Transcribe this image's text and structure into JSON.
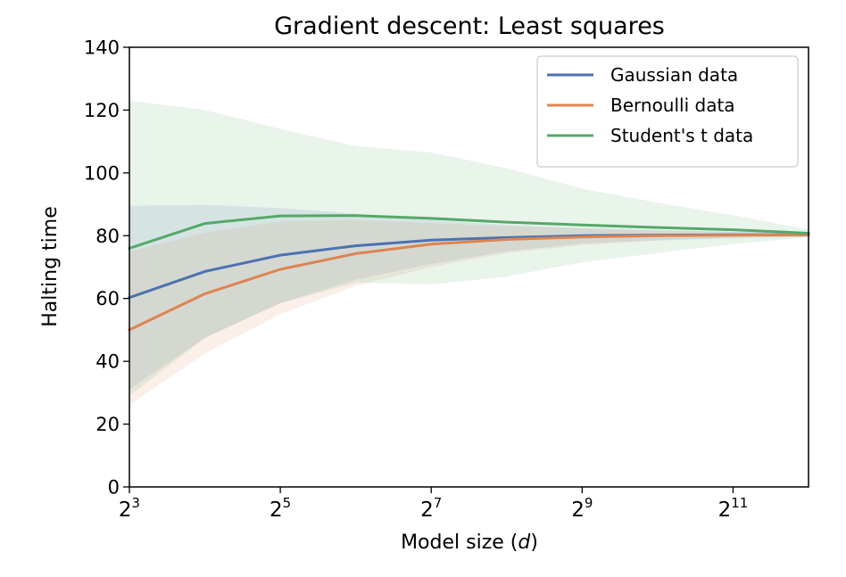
{
  "chart_data": {
    "type": "line",
    "title": "Gradient descent: Least squares",
    "xlabel_prefix": "Model size (",
    "xlabel_var": "d",
    "xlabel_suffix": ")",
    "ylabel": "Halting time",
    "x_scale": "log2",
    "x": [
      8,
      16,
      32,
      64,
      128,
      256,
      512,
      1024,
      2048,
      4096
    ],
    "xlim": [
      8,
      4096
    ],
    "ylim": [
      0,
      140
    ],
    "y_ticks": [
      0,
      20,
      40,
      60,
      80,
      100,
      120,
      140
    ],
    "x_ticks": [
      {
        "value": 8,
        "base": "2",
        "exp": "3"
      },
      {
        "value": 32,
        "base": "2",
        "exp": "5"
      },
      {
        "value": 128,
        "base": "2",
        "exp": "7"
      },
      {
        "value": 512,
        "base": "2",
        "exp": "9"
      },
      {
        "value": 2048,
        "base": "2",
        "exp": "11"
      }
    ],
    "legend_position": "top-right",
    "grid": false,
    "series": [
      {
        "name": "Gaussian data",
        "color": "#4c72b0",
        "values": [
          60.3,
          68.6,
          73.8,
          76.8,
          78.6,
          79.4,
          80.0,
          80.2,
          80.3,
          80.3
        ],
        "upper": [
          89.5,
          89.8,
          88.8,
          87.0,
          85.0,
          83.5,
          82.5,
          81.8,
          81.3,
          81.0
        ],
        "lower": [
          31.0,
          47.5,
          58.5,
          66.0,
          71.0,
          75.0,
          77.5,
          78.6,
          79.3,
          79.7
        ]
      },
      {
        "name": "Bernoulli data",
        "color": "#dd8452",
        "values": [
          50.0,
          61.5,
          69.3,
          74.3,
          77.3,
          78.8,
          79.6,
          80.0,
          80.2,
          80.3
        ],
        "upper": [
          75.0,
          81.0,
          84.5,
          85.0,
          84.0,
          83.0,
          82.3,
          81.6,
          81.2,
          81.0
        ],
        "lower": [
          26.0,
          42.5,
          55.0,
          64.0,
          70.0,
          74.5,
          77.0,
          78.4,
          79.2,
          79.6
        ]
      },
      {
        "name": "Student's t data",
        "color": "#55a868",
        "values": [
          76.0,
          83.9,
          86.3,
          86.4,
          85.5,
          84.3,
          83.4,
          82.6,
          81.9,
          80.8
        ],
        "upper": [
          123.0,
          120.0,
          114.0,
          108.5,
          106.5,
          101.5,
          95.0,
          90.5,
          86.5,
          82.0
        ],
        "lower": [
          29.0,
          47.5,
          58.5,
          65.0,
          64.5,
          67.0,
          71.5,
          74.5,
          77.3,
          79.5
        ]
      }
    ]
  }
}
